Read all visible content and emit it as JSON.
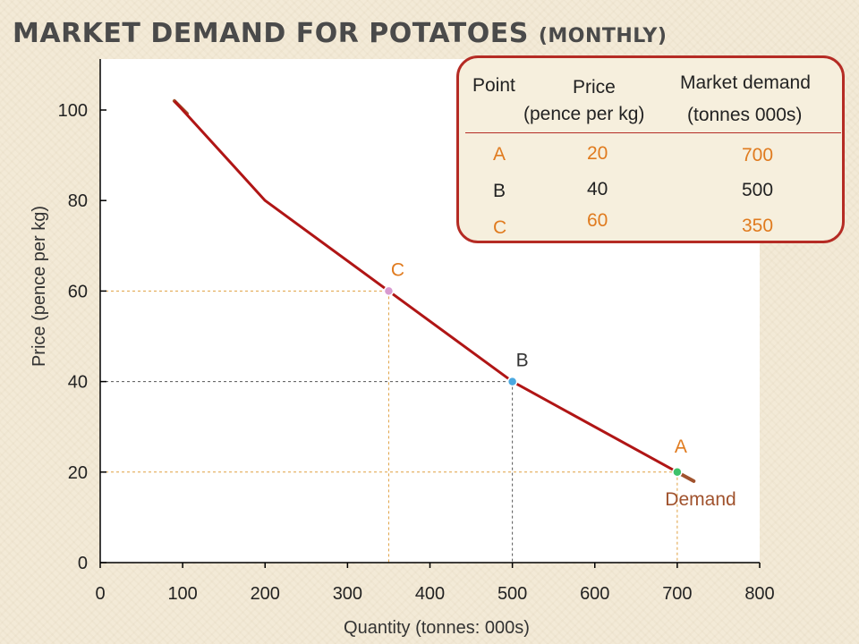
{
  "title": {
    "main": "Market Demand for Potatoes",
    "suffix": "(Monthly)"
  },
  "colors": {
    "curve": "#b01515",
    "curve_ends": "#a0522d",
    "point_A": "#3ec26a",
    "point_B": "#4aa8e0",
    "point_C": "#d89ad0",
    "guide_A_C": "#e0a040",
    "guide_B": "#555555",
    "highlight_text": "#e07b1f"
  },
  "chart_data": {
    "type": "line",
    "xlabel": "Quantity (tonnes: 000s)",
    "ylabel": "Price (pence per kg)",
    "xlim": [
      0,
      800
    ],
    "ylim": [
      0,
      100
    ],
    "x_ticks": [
      0,
      100,
      200,
      300,
      400,
      500,
      600,
      700,
      800
    ],
    "y_ticks": [
      0,
      20,
      40,
      60,
      80,
      100
    ],
    "grid": false,
    "series": [
      {
        "name": "Demand",
        "x": [
          90,
          200,
          350,
          500,
          700,
          720
        ],
        "y": [
          102,
          80,
          60,
          40,
          20,
          18
        ]
      }
    ],
    "points": [
      {
        "label": "C",
        "x": 350,
        "y": 60
      },
      {
        "label": "B",
        "x": 500,
        "y": 40
      },
      {
        "label": "A",
        "x": 700,
        "y": 20
      }
    ]
  },
  "table": {
    "headers": {
      "point": "Point",
      "price": "Price",
      "price_unit": "(pence per kg)",
      "demand": "Market demand",
      "demand_unit": "(tonnes 000s)"
    },
    "rows": [
      {
        "point": "A",
        "price": "20",
        "demand": "700",
        "highlight": true
      },
      {
        "point": "B",
        "price": "40",
        "demand": "500",
        "highlight": false
      },
      {
        "point": "C",
        "price": "60",
        "demand": "350",
        "highlight": true
      }
    ]
  }
}
